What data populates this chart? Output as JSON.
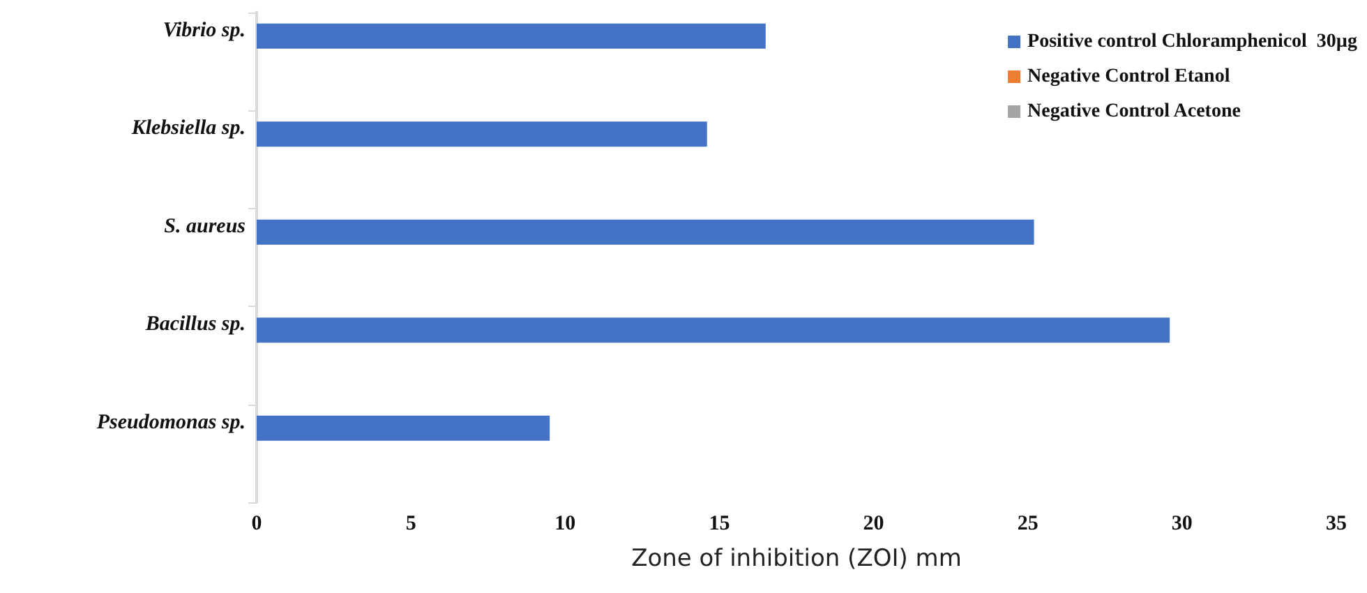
{
  "chart_data": {
    "type": "bar",
    "orientation": "horizontal",
    "xlabel": "Zone of inhibition (ZOI) mm",
    "categories": [
      "Vibrio sp.",
      "Klebsiella sp.",
      "S. aureus",
      "Bacillus sp.",
      "Pseudomonas sp."
    ],
    "series": [
      {
        "name": "Positive control Chloramphenicol  30µg",
        "color": "#4472c4",
        "values": [
          16.5,
          14.6,
          25.2,
          29.6,
          9.5
        ]
      },
      {
        "name": "Negative Control Etanol",
        "color": "#ed7d31",
        "values": [
          0,
          0,
          0,
          0,
          0
        ]
      },
      {
        "name": "Negative Control Acetone",
        "color": "#a5a5a5",
        "values": [
          0,
          0,
          0,
          0,
          0
        ]
      }
    ],
    "xlim": [
      0,
      35
    ],
    "xticks": [
      0,
      5,
      10,
      15,
      20,
      25,
      30,
      35
    ],
    "grid": false,
    "legend": "top right"
  }
}
